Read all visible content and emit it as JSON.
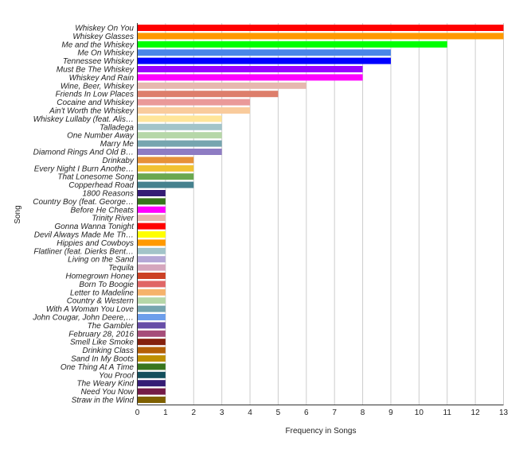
{
  "chart_data": {
    "type": "bar",
    "orientation": "horizontal",
    "title": "",
    "xlabel": "Frequency in Songs",
    "ylabel": "Song",
    "xlim": [
      0,
      13
    ],
    "xticks": [
      0,
      1,
      2,
      3,
      4,
      5,
      6,
      7,
      8,
      9,
      10,
      11,
      12,
      13
    ],
    "grid": true,
    "legend": "none",
    "categories": [
      "Whiskey On You",
      "Whiskey Glasses",
      "Me and the Whiskey",
      "Me On Whiskey",
      "Tennessee Whiskey",
      "Must Be The Whiskey",
      "Whiskey And Rain",
      "Wine, Beer, Whiskey",
      "Friends In Low Places",
      "Cocaine and Whiskey",
      "Ain't Worth the Whiskey",
      "Whiskey Lullaby (feat. Alis…",
      "Talladega",
      "One Number Away",
      "Marry Me",
      "Diamond Rings And Old B…",
      "Drinkaby",
      "Every Night I Burn Anothe…",
      "That Lonesome Song",
      "Copperhead Road",
      "1800 Reasons",
      "Country Boy (feat. George…",
      "Before He Cheats",
      "Trinity River",
      "Gonna Wanna Tonight",
      "Devil Always Made Me Th…",
      "Hippies and Cowboys",
      "Flatliner (feat. Dierks Bent…",
      "Living on the Sand",
      "Tequila",
      "Homegrown Honey",
      "Born To Boogie",
      "Letter to Madeline",
      "Country & Western",
      "With A Woman You Love",
      "John Cougar, John Deere,…",
      "The Gambler",
      "February 28, 2016",
      "Smell Like Smoke",
      "Drinking Class",
      "Sand In My Boots",
      "One Thing At A Time",
      "You Proof",
      "The Weary Kind",
      "Need You Now",
      "Straw in the Wind"
    ],
    "values": [
      13,
      13,
      11,
      9,
      9,
      8,
      8,
      6,
      5,
      4,
      4,
      3,
      3,
      3,
      3,
      3,
      2,
      2,
      2,
      2,
      1,
      1,
      1,
      1,
      1,
      1,
      1,
      1,
      1,
      1,
      1,
      1,
      1,
      1,
      1,
      1,
      1,
      1,
      1,
      1,
      1,
      1,
      1,
      1,
      1,
      1
    ],
    "colors": [
      "#ff0000",
      "#ff9900",
      "#00ff00",
      "#4a86e8",
      "#0000ff",
      "#9900ff",
      "#ff00ff",
      "#e6b8af",
      "#dd7e6b",
      "#ea9999",
      "#f9cb9c",
      "#ffe599",
      "#a2c4c9",
      "#b6d7a8",
      "#76a5af",
      "#8e7cc3",
      "#e69138",
      "#f1c232",
      "#6aa84f",
      "#45818e",
      "#351c75",
      "#38761d",
      "#ff00ff",
      "#e6b8af",
      "#ff0000",
      "#ffff00",
      "#ff9900",
      "#a2c4c9",
      "#b4a7d6",
      "#d5a6bd",
      "#cc4125",
      "#e06666",
      "#f6b26b",
      "#b6d7a8",
      "#76a5af",
      "#6d9eeb",
      "#674ea7",
      "#a64d79",
      "#85200c",
      "#b45f06",
      "#bf9000",
      "#38761d",
      "#134f5c",
      "#351c75",
      "#741b47",
      "#7f6000"
    ]
  }
}
